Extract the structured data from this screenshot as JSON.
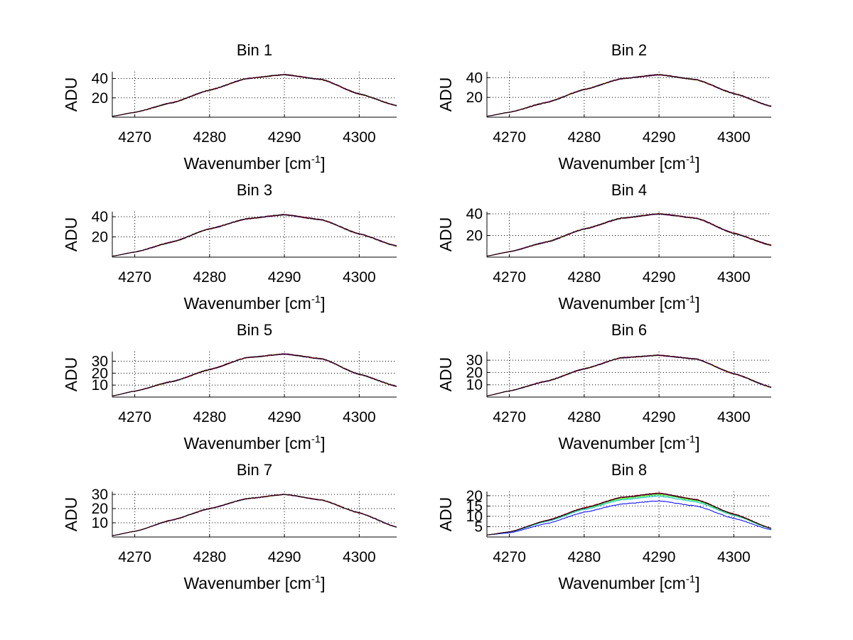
{
  "colors": {
    "background": "#ffffff",
    "axis": "#000000",
    "grid": "#000000",
    "series": [
      "#0000ff",
      "#00bfbf",
      "#00ff00",
      "#ffcc00",
      "#ff0000",
      "#bf00bf",
      "#000000"
    ]
  },
  "chart_data": [
    {
      "type": "line",
      "title": "Bin 1",
      "xlabel": "Wavenumber [cm",
      "xlabel_sup": "-1",
      "xlabel_end": "]",
      "ylabel": "ADU",
      "xlim": [
        4267,
        4305
      ],
      "ylim": [
        0,
        47
      ],
      "xticks": [
        4270,
        4280,
        4290,
        4300
      ],
      "yticks": [
        20,
        40
      ],
      "grid": true,
      "series_count": 7,
      "noise": 1.0,
      "x": [
        4267,
        4270,
        4275,
        4280,
        4285,
        4290,
        4295,
        4300,
        4305
      ],
      "y": [
        1,
        5,
        15,
        28,
        40,
        44,
        39,
        24,
        12
      ]
    },
    {
      "type": "line",
      "title": "Bin 2",
      "xlabel": "Wavenumber [cm",
      "xlabel_sup": "-1",
      "xlabel_end": "]",
      "ylabel": "ADU",
      "xlim": [
        4267,
        4305
      ],
      "ylim": [
        0,
        46
      ],
      "xticks": [
        4270,
        4280,
        4290,
        4300
      ],
      "yticks": [
        20,
        40
      ],
      "grid": true,
      "series_count": 7,
      "noise": 1.0,
      "x": [
        4267,
        4270,
        4275,
        4280,
        4285,
        4290,
        4295,
        4300,
        4305
      ],
      "y": [
        1,
        5,
        15,
        28,
        39,
        43,
        38,
        24,
        11
      ]
    },
    {
      "type": "line",
      "title": "Bin 3",
      "xlabel": "Wavenumber [cm",
      "xlabel_sup": "-1",
      "xlabel_end": "]",
      "ylabel": "ADU",
      "xlim": [
        4267,
        4305
      ],
      "ylim": [
        0,
        45
      ],
      "xticks": [
        4270,
        4280,
        4290,
        4300
      ],
      "yticks": [
        20,
        40
      ],
      "grid": true,
      "series_count": 7,
      "noise": 1.0,
      "x": [
        4267,
        4270,
        4275,
        4280,
        4285,
        4290,
        4295,
        4300,
        4305
      ],
      "y": [
        1,
        5,
        15,
        28,
        38,
        42,
        37,
        23,
        11
      ]
    },
    {
      "type": "line",
      "title": "Bin 4",
      "xlabel": "Wavenumber [cm",
      "xlabel_sup": "-1",
      "xlabel_end": "]",
      "ylabel": "ADU",
      "xlim": [
        4267,
        4305
      ],
      "ylim": [
        0,
        42
      ],
      "xticks": [
        4270,
        4280,
        4290,
        4300
      ],
      "yticks": [
        20,
        40
      ],
      "grid": true,
      "series_count": 7,
      "noise": 1.0,
      "x": [
        4267,
        4270,
        4275,
        4280,
        4285,
        4290,
        4295,
        4300,
        4305
      ],
      "y": [
        1,
        5,
        14,
        26,
        36,
        40,
        36,
        22,
        11
      ]
    },
    {
      "type": "line",
      "title": "Bin 5",
      "xlabel": "Wavenumber [cm",
      "xlabel_sup": "-1",
      "xlabel_end": "]",
      "ylabel": "ADU",
      "xlim": [
        4267,
        4305
      ],
      "ylim": [
        0,
        38
      ],
      "xticks": [
        4270,
        4280,
        4290,
        4300
      ],
      "yticks": [
        10,
        20,
        30
      ],
      "grid": true,
      "series_count": 7,
      "noise": 0.8,
      "x": [
        4267,
        4270,
        4275,
        4280,
        4285,
        4290,
        4295,
        4300,
        4305
      ],
      "y": [
        1,
        5,
        13,
        23,
        33,
        36,
        32,
        19,
        9
      ]
    },
    {
      "type": "line",
      "title": "Bin 6",
      "xlabel": "Wavenumber [cm",
      "xlabel_sup": "-1",
      "xlabel_end": "]",
      "ylabel": "ADU",
      "xlim": [
        4267,
        4305
      ],
      "ylim": [
        0,
        37
      ],
      "xticks": [
        4270,
        4280,
        4290,
        4300
      ],
      "yticks": [
        10,
        20,
        30
      ],
      "grid": true,
      "series_count": 7,
      "noise": 0.8,
      "x": [
        4267,
        4270,
        4275,
        4280,
        4285,
        4290,
        4295,
        4300,
        4305
      ],
      "y": [
        1,
        5,
        13,
        23,
        32,
        34,
        31,
        19,
        8
      ]
    },
    {
      "type": "line",
      "title": "Bin 7",
      "xlabel": "Wavenumber [cm",
      "xlabel_sup": "-1",
      "xlabel_end": "]",
      "ylabel": "ADU",
      "xlim": [
        4267,
        4305
      ],
      "ylim": [
        0,
        32
      ],
      "xticks": [
        4270,
        4280,
        4290,
        4300
      ],
      "yticks": [
        10,
        20,
        30
      ],
      "grid": true,
      "series_count": 7,
      "noise": 0.6,
      "x": [
        4267,
        4270,
        4275,
        4280,
        4285,
        4290,
        4295,
        4300,
        4305
      ],
      "y": [
        1,
        4,
        12,
        20,
        27,
        30,
        26,
        17,
        7
      ]
    },
    {
      "type": "line",
      "title": "Bin 8",
      "xlabel": "Wavenumber [cm",
      "xlabel_sup": "-1",
      "xlabel_end": "]",
      "ylabel": "ADU",
      "xlim": [
        4267,
        4305
      ],
      "ylim": [
        0,
        22
      ],
      "xticks": [
        4270,
        4280,
        4290,
        4300
      ],
      "yticks": [
        5,
        10,
        15,
        20
      ],
      "grid": true,
      "series_count": 7,
      "noise": 0.3,
      "x": [
        4267,
        4270,
        4275,
        4280,
        4285,
        4290,
        4295,
        4300,
        4305
      ],
      "y": [
        1,
        2.5,
        8,
        14,
        19,
        21,
        18,
        11,
        4
      ],
      "series": [
        {
          "color": "#0000ff",
          "values": [
            1,
            2,
            6.5,
            12,
            16,
            17.5,
            15,
            9,
            3.5
          ]
        },
        {
          "color": "#00bfbf",
          "values": [
            1,
            2.3,
            7.5,
            13.3,
            18,
            19.8,
            17,
            10.5,
            4
          ]
        },
        {
          "color": "#00ff00",
          "values": [
            1,
            2.4,
            7.8,
            13.8,
            18.6,
            20.5,
            17.6,
            10.8,
            4
          ]
        },
        {
          "color": "#ffcc00",
          "values": [
            1,
            2.5,
            8,
            14,
            19,
            21,
            18,
            11,
            4.2
          ]
        },
        {
          "color": "#ff0000",
          "values": [
            1,
            2.5,
            8.1,
            14.2,
            19.3,
            21.3,
            18.2,
            11.2,
            4.3
          ]
        },
        {
          "color": "#bf00bf",
          "values": [
            1,
            2.4,
            7.9,
            14,
            19.1,
            21,
            18,
            11,
            4.2
          ]
        },
        {
          "color": "#000000",
          "values": [
            1,
            2.5,
            8,
            14,
            19.2,
            21.2,
            18.1,
            11.1,
            4.2
          ]
        }
      ]
    }
  ]
}
